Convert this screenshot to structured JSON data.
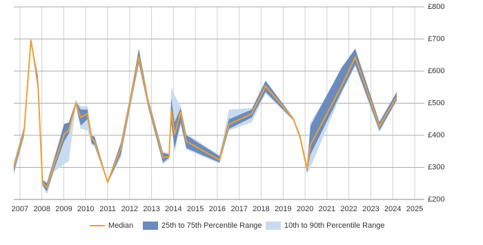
{
  "chart_data": {
    "type": "line",
    "x": [
      2006.72,
      2007.19,
      2007.5,
      2007.82,
      2008.03,
      2008.23,
      2008.54,
      2009.01,
      2009.23,
      2009.55,
      2009.77,
      2010.08,
      2010.27,
      2010.4,
      2011.0,
      2011.6,
      2012.07,
      2012.42,
      2012.86,
      2013.52,
      2013.8,
      2013.9,
      2014.05,
      2014.33,
      2014.59,
      2016.1,
      2016.53,
      2017.57,
      2018.2,
      2019.46,
      2019.77,
      2020.09,
      2020.25,
      2021.66,
      2022.29,
      2023.39,
      2024.18
    ],
    "series": [
      {
        "name": "Median",
        "color": "#f0a030",
        "values": [
          300,
          413,
          697,
          563,
          252,
          237,
          305,
          402,
          417,
          499,
          456,
          467,
          391,
          381,
          254,
          359,
          520,
          645,
          499,
          331,
          333,
          477,
          402,
          473,
          381,
          323,
          434,
          467,
          553,
          452,
          396,
          295,
          370,
          553,
          643,
          428,
          520
        ]
      },
      {
        "name": "25th to 75th Percentile Range",
        "color": "#6a8bbd",
        "low": [
          285,
          400,
          690,
          545,
          245,
          225,
          290,
          380,
          405,
          495,
          430,
          450,
          375,
          370,
          250,
          340,
          505,
          625,
          485,
          315,
          330,
          440,
          360,
          440,
          360,
          315,
          420,
          455,
          535,
          448,
          390,
          285,
          340,
          535,
          620,
          415,
          510
        ],
        "high": [
          310,
          425,
          700,
          585,
          260,
          250,
          320,
          435,
          440,
          505,
          480,
          480,
          400,
          395,
          258,
          375,
          535,
          670,
          510,
          345,
          340,
          515,
          440,
          485,
          400,
          335,
          450,
          480,
          570,
          455,
          402,
          305,
          430,
          610,
          670,
          440,
          535
        ]
      },
      {
        "name": "10th to 90th Percentile Range",
        "color": "#c9dbee",
        "low": [
          275,
          395,
          690,
          535,
          240,
          215,
          285,
          310,
          320,
          490,
          420,
          415,
          370,
          365,
          250,
          330,
          500,
          620,
          480,
          310,
          325,
          430,
          345,
          430,
          355,
          312,
          415,
          440,
          530,
          446,
          385,
          280,
          300,
          530,
          615,
          410,
          505
        ],
        "high": [
          315,
          430,
          700,
          590,
          262,
          255,
          330,
          425,
          440,
          510,
          490,
          490,
          405,
          400,
          258,
          380,
          540,
          665,
          515,
          350,
          345,
          550,
          525,
          490,
          405,
          338,
          480,
          485,
          570,
          456,
          405,
          310,
          440,
          600,
          665,
          445,
          535
        ]
      }
    ],
    "xlim": [
      2006.72,
      2025.44
    ],
    "xticks": [
      2007,
      2008,
      2009,
      2010,
      2011,
      2012,
      2013,
      2014,
      2015,
      2016,
      2017,
      2018,
      2019,
      2020,
      2021,
      2022,
      2023,
      2024,
      2025
    ],
    "ylim": [
      200,
      800
    ],
    "yticks": [
      {
        "value": 200,
        "label": "£200"
      },
      {
        "value": 300,
        "label": "£300"
      },
      {
        "value": 400,
        "label": "£400"
      },
      {
        "value": 500,
        "label": "£500"
      },
      {
        "value": 600,
        "label": "£600"
      },
      {
        "value": 700,
        "label": "£700"
      },
      {
        "value": 800,
        "label": "£800"
      }
    ],
    "grid": true
  }
}
